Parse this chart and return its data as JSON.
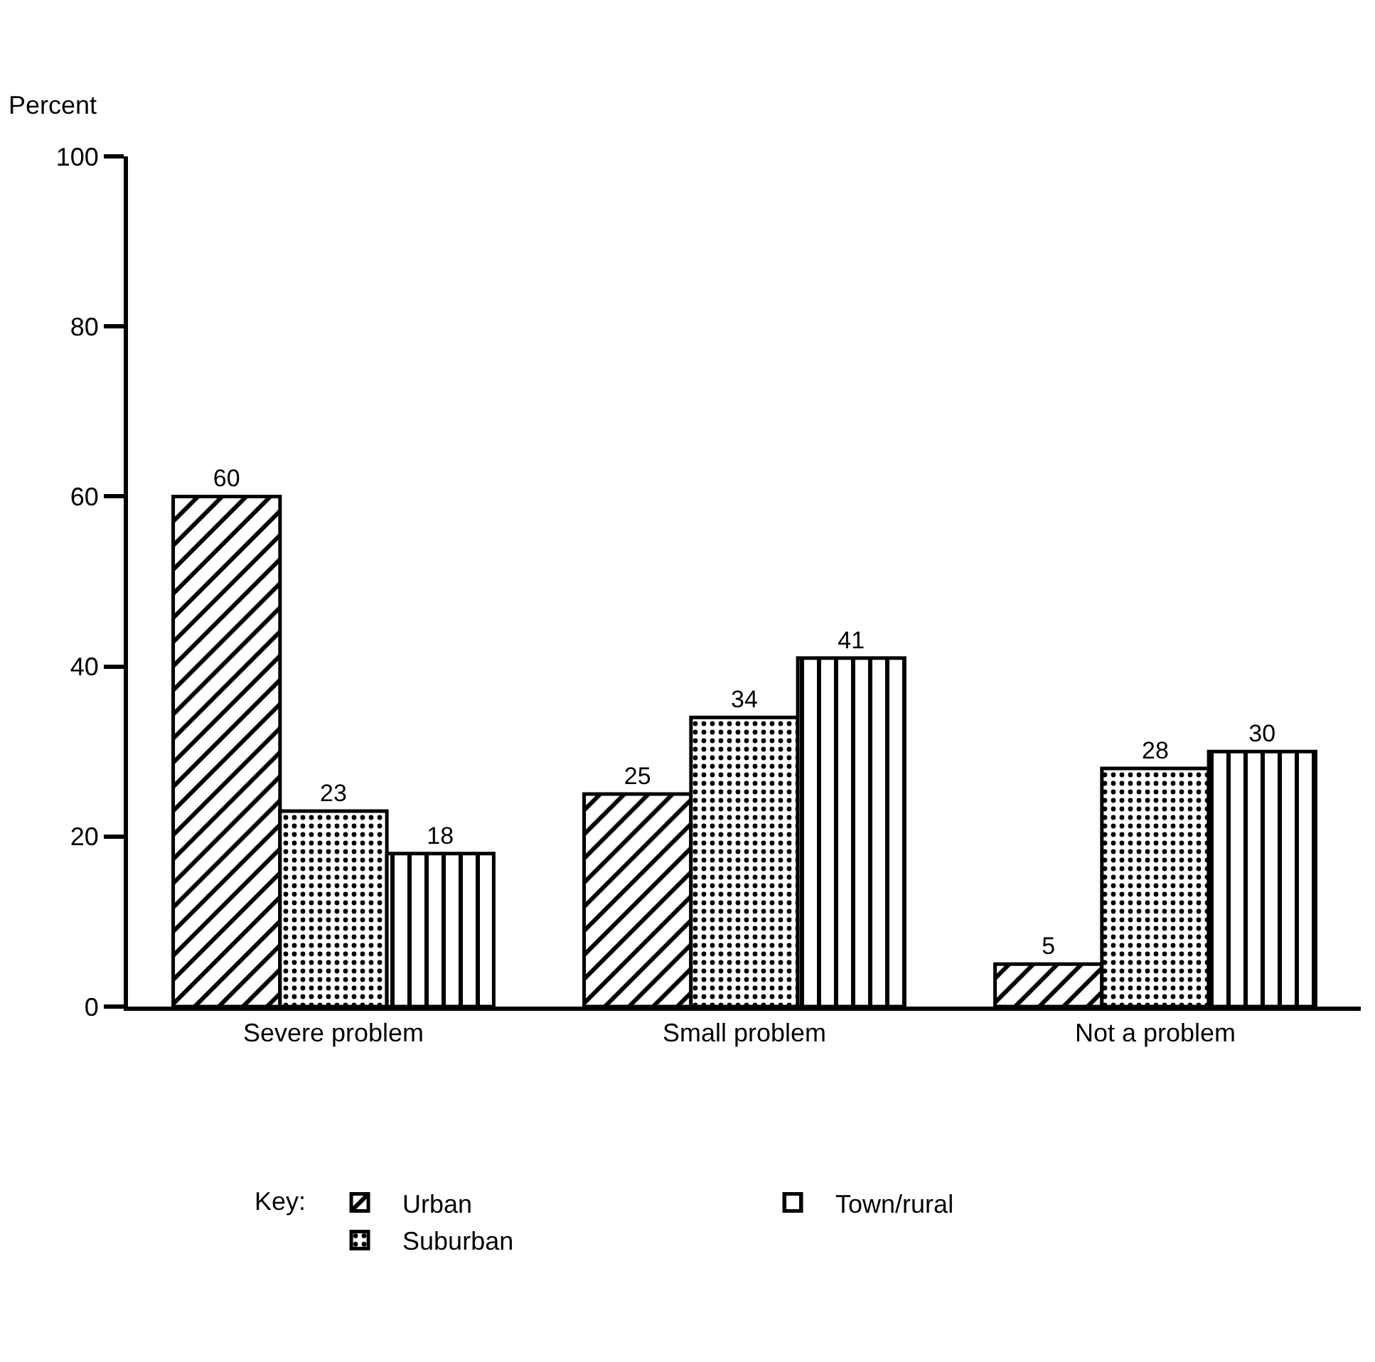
{
  "chart_data": {
    "type": "bar",
    "ylabel": "Percent",
    "legend_title": "Key:",
    "categories": [
      "Severe problem",
      "Small problem",
      "Not a problem"
    ],
    "series": [
      {
        "name": "Urban",
        "color": "#000000",
        "values": [
          60,
          25,
          5
        ]
      },
      {
        "name": "Suburban",
        "color": "#000000",
        "values": [
          23,
          34,
          28
        ]
      },
      {
        "name": "Town/rural",
        "color": "#000000",
        "values": [
          18,
          41,
          30
        ]
      }
    ],
    "ylim": [
      0,
      100
    ],
    "yticks": [
      0,
      20,
      40,
      60,
      80,
      100
    ],
    "legend": "bottom",
    "data_labels": true
  }
}
